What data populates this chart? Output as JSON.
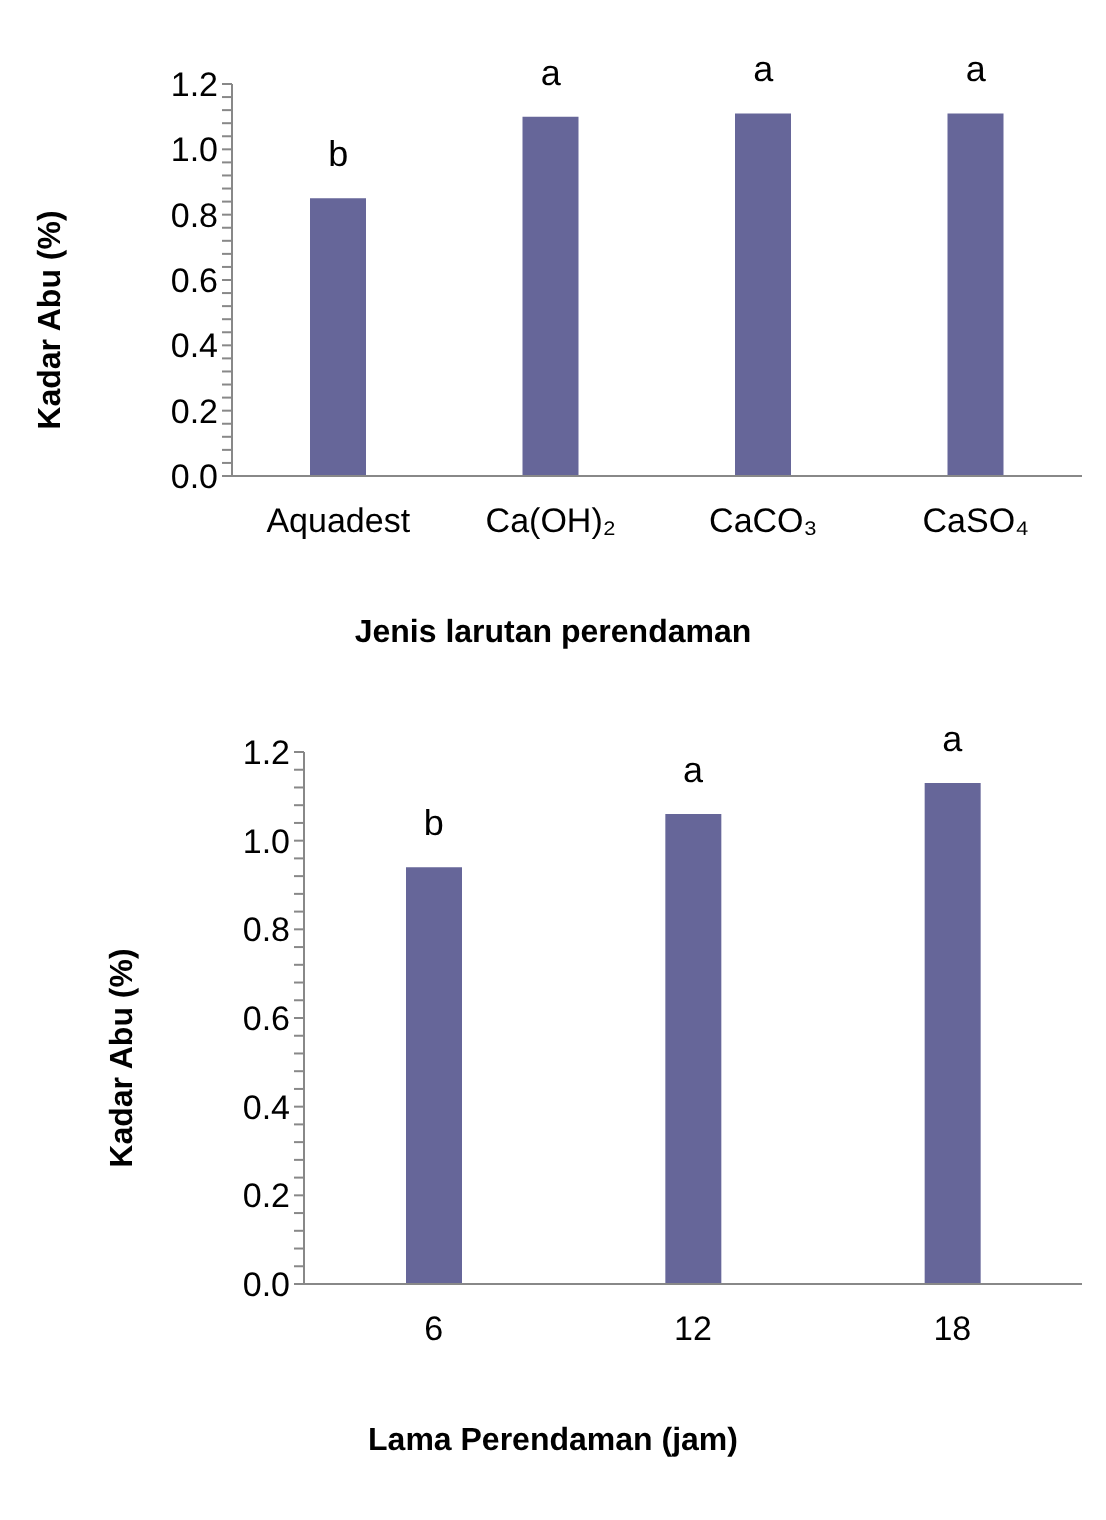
{
  "chart_data": [
    {
      "type": "bar",
      "xlabel": "Jenis larutan perendaman",
      "ylabel": "Kadar Abu (%)",
      "categories": [
        "Aquadest",
        "Ca(OH)₂",
        "CaCO₃",
        "CaSO₄"
      ],
      "values": [
        0.85,
        1.1,
        1.11,
        1.11
      ],
      "color": "#666699",
      "ylim": [
        0,
        1.2
      ],
      "yticks": [
        {
          "value": 0,
          "label": "0.0"
        },
        {
          "value": 0.04,
          "label": null
        },
        {
          "value": 0.08,
          "label": null
        },
        {
          "value": 0.12,
          "label": null
        },
        {
          "value": 0.16,
          "label": null
        },
        {
          "value": 0.2,
          "label": "0.2"
        },
        {
          "value": 0.24,
          "label": null
        },
        {
          "value": 0.28,
          "label": null
        },
        {
          "value": 0.32,
          "label": null
        },
        {
          "value": 0.36,
          "label": null
        },
        {
          "value": 0.4,
          "label": "0.4"
        },
        {
          "value": 0.44,
          "label": null
        },
        {
          "value": 0.48,
          "label": null
        },
        {
          "value": 0.52,
          "label": null
        },
        {
          "value": 0.56,
          "label": null
        },
        {
          "value": 0.6,
          "label": "0.6"
        },
        {
          "value": 0.64,
          "label": null
        },
        {
          "value": 0.68,
          "label": null
        },
        {
          "value": 0.72,
          "label": null
        },
        {
          "value": 0.76,
          "label": null
        },
        {
          "value": 0.8,
          "label": "0.8"
        },
        {
          "value": 0.84,
          "label": null
        },
        {
          "value": 0.88,
          "label": null
        },
        {
          "value": 0.92,
          "label": null
        },
        {
          "value": 0.96,
          "label": null
        },
        {
          "value": 1,
          "label": "1.0"
        },
        {
          "value": 1.04,
          "label": null
        },
        {
          "value": 1.08,
          "label": null
        },
        {
          "value": 1.12,
          "label": null
        },
        {
          "value": 1.16,
          "label": null
        },
        {
          "value": 1.2,
          "label": "1.2"
        }
      ],
      "grid": false,
      "legend": false,
      "annotations": [
        {
          "text": "b",
          "x": "Aquadest",
          "y": 0.85
        },
        {
          "text": "a",
          "x": "Ca(OH)₂",
          "y": 1.1
        },
        {
          "text": "a",
          "x": "CaCO₃",
          "y": 1.11
        },
        {
          "text": "a",
          "x": "CaSO₄",
          "y": 1.11
        }
      ]
    },
    {
      "type": "bar",
      "xlabel": "Lama Perendaman (jam)",
      "ylabel": "Kadar Abu (%)",
      "categories": [
        "6",
        "12",
        "18"
      ],
      "values": [
        0.94,
        1.06,
        1.13
      ],
      "color": "#666699",
      "ylim": [
        0,
        1.2
      ],
      "yticks": [
        {
          "value": 0,
          "label": "0.0"
        },
        {
          "value": 0.04,
          "label": null
        },
        {
          "value": 0.08,
          "label": null
        },
        {
          "value": 0.12,
          "label": null
        },
        {
          "value": 0.16,
          "label": null
        },
        {
          "value": 0.2,
          "label": "0.2"
        },
        {
          "value": 0.24,
          "label": null
        },
        {
          "value": 0.28,
          "label": null
        },
        {
          "value": 0.32,
          "label": null
        },
        {
          "value": 0.36,
          "label": null
        },
        {
          "value": 0.4,
          "label": "0.4"
        },
        {
          "value": 0.44,
          "label": null
        },
        {
          "value": 0.48,
          "label": null
        },
        {
          "value": 0.52,
          "label": null
        },
        {
          "value": 0.56,
          "label": null
        },
        {
          "value": 0.6,
          "label": "0.6"
        },
        {
          "value": 0.64,
          "label": null
        },
        {
          "value": 0.68,
          "label": null
        },
        {
          "value": 0.72,
          "label": null
        },
        {
          "value": 0.76,
          "label": null
        },
        {
          "value": 0.8,
          "label": "0.8"
        },
        {
          "value": 0.84,
          "label": null
        },
        {
          "value": 0.88,
          "label": null
        },
        {
          "value": 0.92,
          "label": null
        },
        {
          "value": 0.96,
          "label": null
        },
        {
          "value": 1,
          "label": "1.0"
        },
        {
          "value": 1.04,
          "label": null
        },
        {
          "value": 1.08,
          "label": null
        },
        {
          "value": 1.12,
          "label": null
        },
        {
          "value": 1.16,
          "label": null
        },
        {
          "value": 1.2,
          "label": "1.2"
        }
      ],
      "grid": false,
      "legend": false,
      "annotations": [
        {
          "text": "b",
          "x": "6",
          "y": 0.94
        },
        {
          "text": "a",
          "x": "12",
          "y": 1.06
        },
        {
          "text": "a",
          "x": "18",
          "y": 1.13
        }
      ]
    }
  ]
}
